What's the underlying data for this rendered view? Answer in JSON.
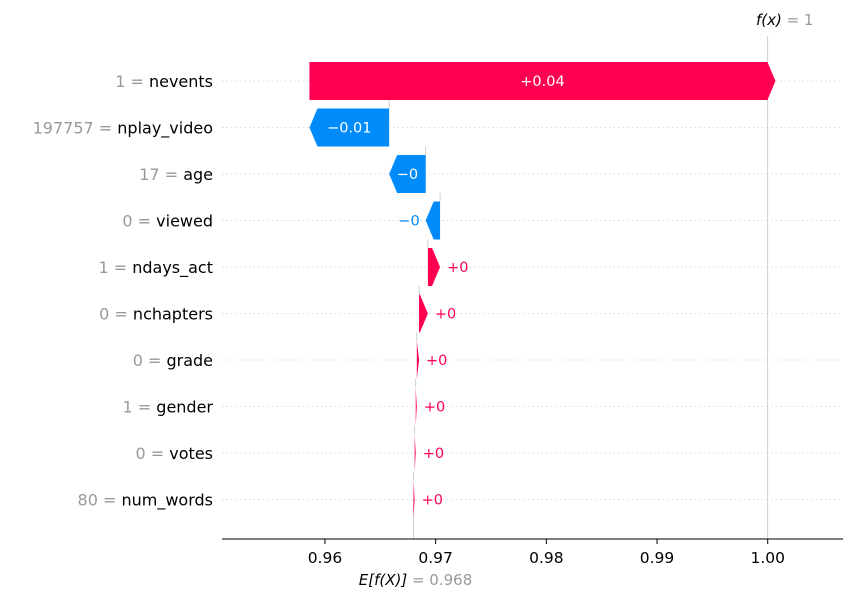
{
  "chart_data": {
    "type": "waterfall",
    "base_value": 0.968,
    "base_value_label": "0.968",
    "output_value": 1.0,
    "output_value_label": "1",
    "fx_text": "f(x)",
    "ex_text": "E[f(X)]",
    "xlim": [
      0.9507,
      1.0068
    ],
    "xticks": [
      0.96,
      0.97,
      0.98,
      0.99,
      1.0
    ],
    "xtick_labels": [
      "0.96",
      "0.97",
      "0.98",
      "0.99",
      "1.00"
    ],
    "features": [
      {
        "value": "1",
        "name": "nevents",
        "contribution": 0.0421,
        "label": "+0.04"
      },
      {
        "value": "197757",
        "name": "nplay_video",
        "contribution": -0.0072,
        "label": "−0.01"
      },
      {
        "value": "17",
        "name": "age",
        "contribution": -0.0033,
        "label": "−0"
      },
      {
        "value": "0",
        "name": "viewed",
        "contribution": -0.0013,
        "label": "−0"
      },
      {
        "value": "1",
        "name": "ndays_act",
        "contribution": 0.0011,
        "label": "+0"
      },
      {
        "value": "0",
        "name": "nchapters",
        "contribution": 0.0008,
        "label": "+0"
      },
      {
        "value": "0",
        "name": "grade",
        "contribution": 0.0002,
        "label": "+0"
      },
      {
        "value": "1",
        "name": "gender",
        "contribution": 0.0001,
        "label": "+0"
      },
      {
        "value": "0",
        "name": "votes",
        "contribution": 0.0001,
        "label": "+0"
      },
      {
        "value": "80",
        "name": "num_words",
        "contribution": 0.0001,
        "label": "+0"
      }
    ],
    "colors": {
      "positive": "#ff0051",
      "negative": "#008bfb",
      "value_text": "#999999"
    },
    "grid": true
  }
}
